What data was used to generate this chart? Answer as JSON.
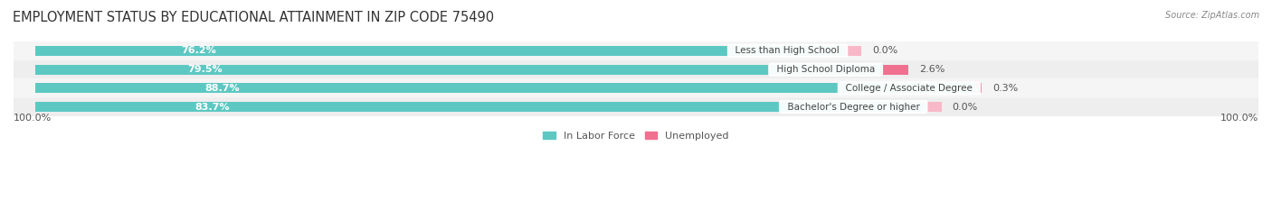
{
  "title": "EMPLOYMENT STATUS BY EDUCATIONAL ATTAINMENT IN ZIP CODE 75490",
  "source": "Source: ZipAtlas.com",
  "categories": [
    "Less than High School",
    "High School Diploma",
    "College / Associate Degree",
    "Bachelor's Degree or higher"
  ],
  "labor_force": [
    76.2,
    79.5,
    88.7,
    83.7
  ],
  "unemployed": [
    0.0,
    2.6,
    0.3,
    0.0
  ],
  "labor_color": "#5DC8C2",
  "unemployed_color": "#F07090",
  "unemployed_color_light": "#F8B8C8",
  "label_color_labor": "#FFFFFF",
  "axis_label_left": "100.0%",
  "axis_label_right": "100.0%",
  "max_val": 100.0,
  "bar_height": 0.52,
  "title_fontsize": 10.5,
  "label_fontsize": 8,
  "category_fontsize": 7.5,
  "legend_fontsize": 8,
  "source_fontsize": 7
}
